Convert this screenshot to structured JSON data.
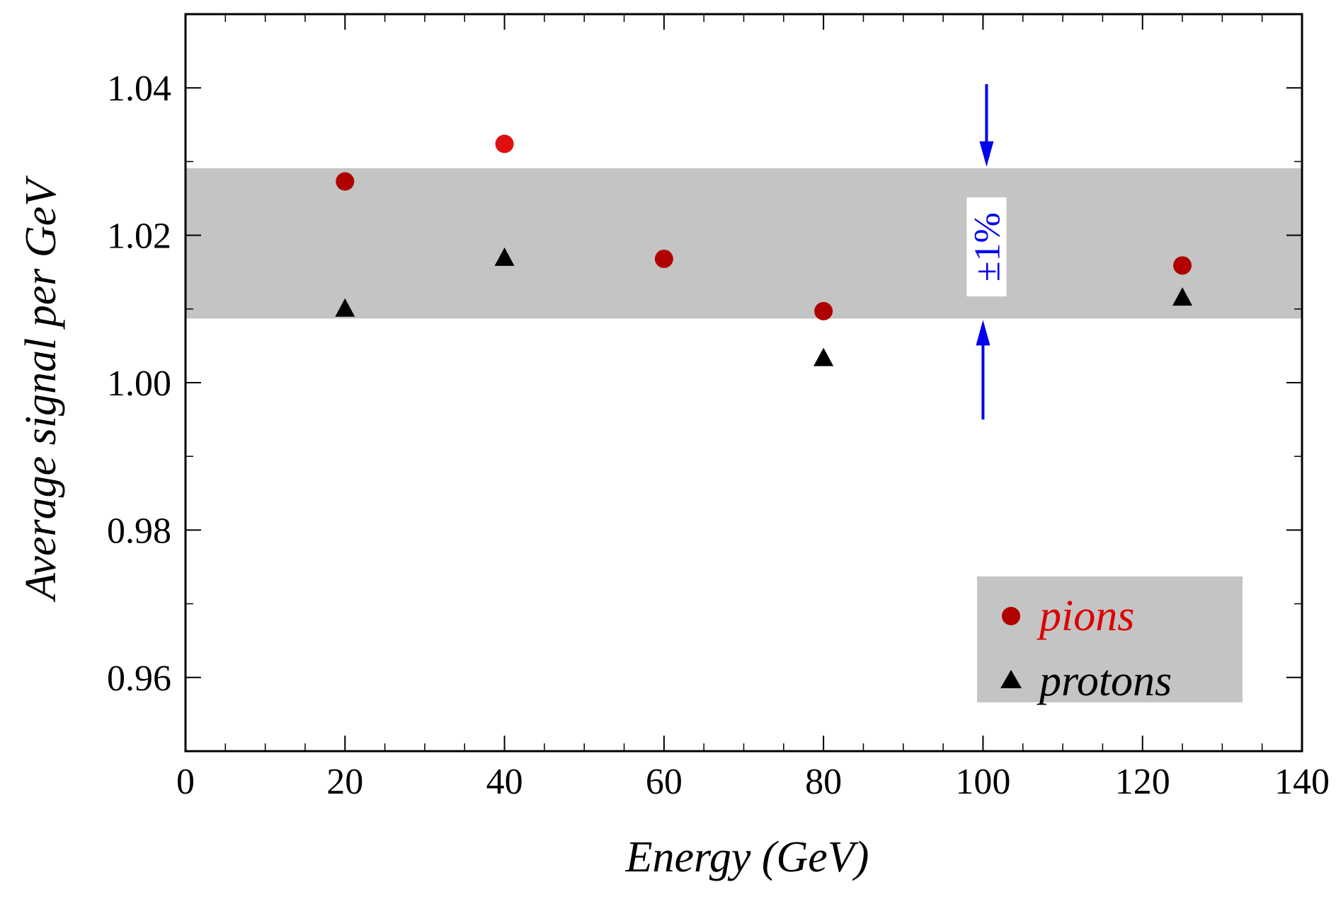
{
  "chart_data": {
    "type": "scatter",
    "xlabel": "Energy (GeV)",
    "ylabel": "Average signal per GeV",
    "xlim": [
      0,
      140
    ],
    "ylim": [
      0.95,
      1.05
    ],
    "x_ticks": [
      0,
      20,
      40,
      60,
      80,
      100,
      120,
      140
    ],
    "y_ticks": [
      0.96,
      0.98,
      1.0,
      1.02,
      1.04
    ],
    "y_tick_labels": [
      "0.96",
      "0.98",
      "1.00",
      "1.02",
      "1.04"
    ],
    "x_minor_step": 5,
    "y_minor_step": 0.01,
    "grid": false,
    "legend_position": "bottom-right",
    "series": [
      {
        "name": "pions",
        "marker": "circle",
        "color": "#b00000",
        "points": [
          {
            "x": 20,
            "y": 1.0273,
            "color": "#b00000"
          },
          {
            "x": 40,
            "y": 1.0324,
            "color": "#e01010"
          },
          {
            "x": 60,
            "y": 1.0168,
            "color": "#b00000"
          },
          {
            "x": 80,
            "y": 1.0097,
            "color": "#b00000"
          },
          {
            "x": 125,
            "y": 1.0159,
            "color": "#b00000"
          }
        ]
      },
      {
        "name": "protons",
        "marker": "triangle",
        "color": "#000000",
        "points": [
          {
            "x": 20,
            "y": 1.0101
          },
          {
            "x": 40,
            "y": 1.017
          },
          {
            "x": 80,
            "y": 1.0034
          },
          {
            "x": 125,
            "y": 1.0116
          }
        ]
      }
    ],
    "band": {
      "y_min": 1.0087,
      "y_max": 1.0291,
      "color": "#c4c4c4",
      "label": "±1%",
      "label_color": "#0000ee",
      "arrow_x": 100,
      "arrow_top_from": 1.0405,
      "arrow_bottom_from": 0.995
    }
  }
}
